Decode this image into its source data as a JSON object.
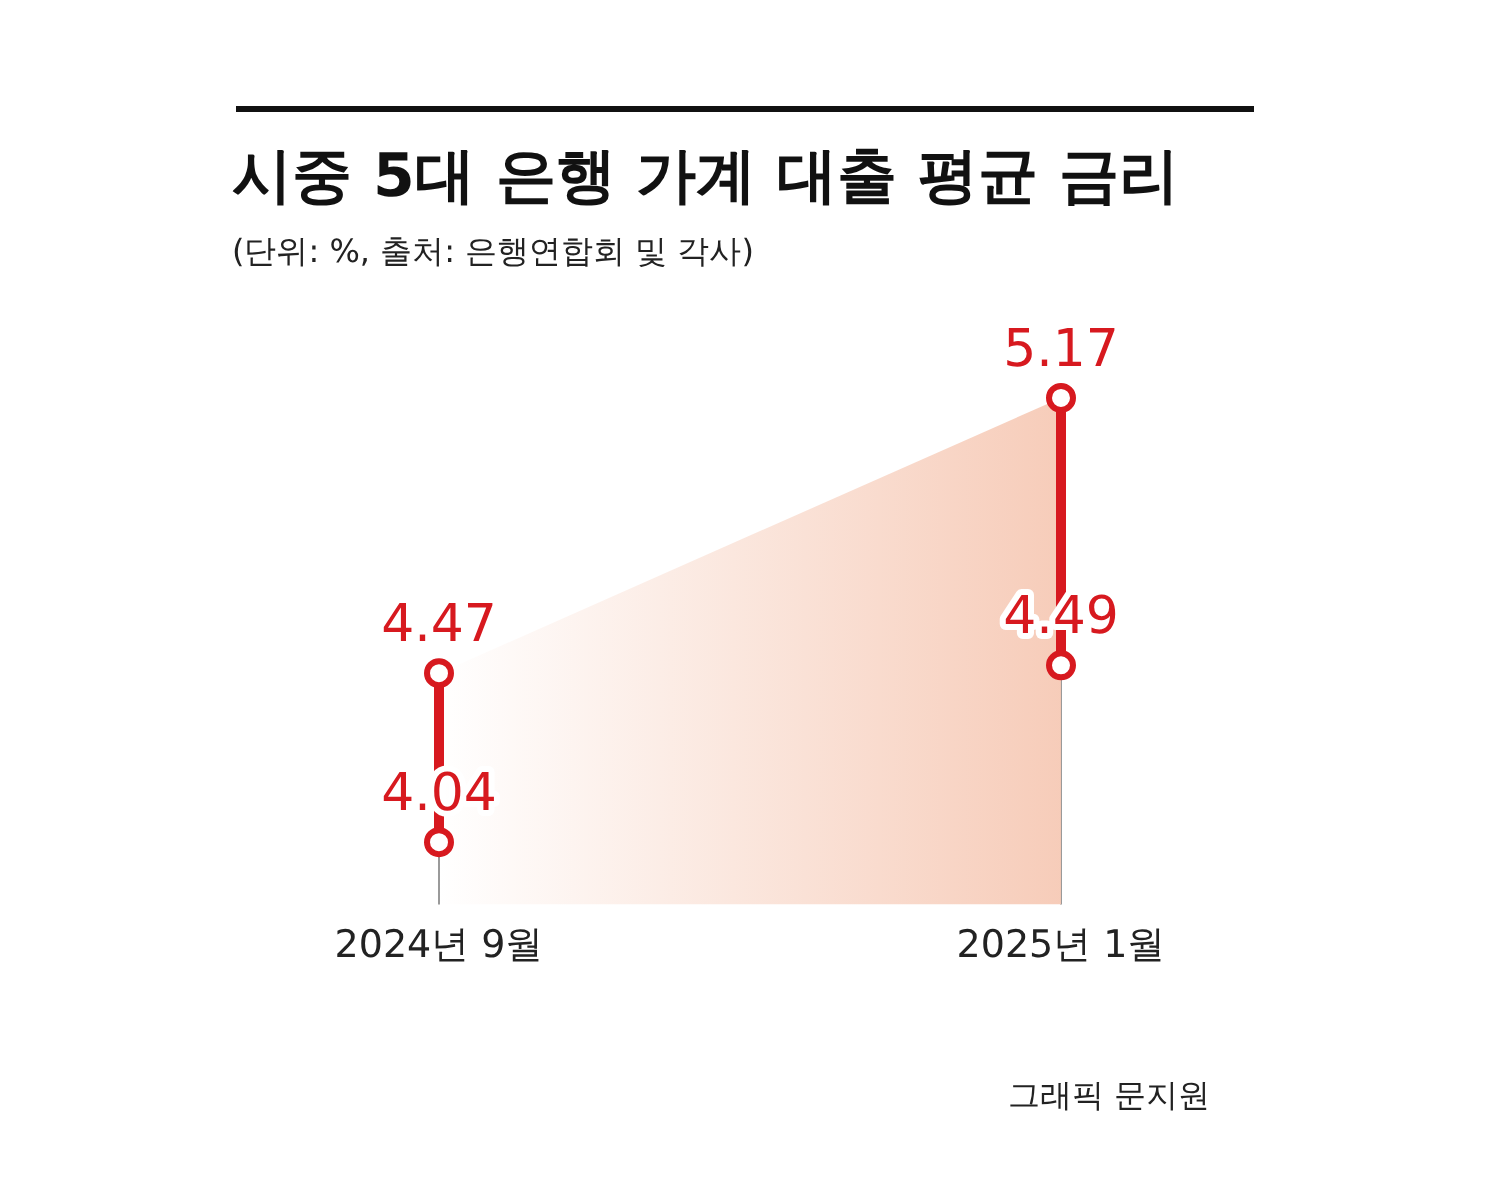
{
  "chart_data": {
    "type": "line",
    "title": "시중 5대 은행 가계 대출 평균 금리",
    "subtitle": "(단위: %, 출처: 은행연합회 및 각사)",
    "categories": [
      "2024년 9월",
      "2025년 1월"
    ],
    "series": [
      {
        "x": [
          "2024년 9월",
          "2024년 9월"
        ],
        "values": [
          4.04,
          4.47
        ],
        "color": "#d7191f",
        "value_labels": [
          "4.04",
          "4.47"
        ]
      },
      {
        "x": [
          "2025년 1월",
          "2025년 1월"
        ],
        "values": [
          4.49,
          5.17
        ],
        "color": "#d7191f",
        "value_labels": [
          "4.49",
          "5.17"
        ]
      },
      {
        "type": "area",
        "values": [
          4.47,
          5.17
        ],
        "color": "#f6c9b5",
        "marker": "none"
      }
    ],
    "marker": "circle",
    "annotations": [
      "그래픽 문지원"
    ]
  }
}
